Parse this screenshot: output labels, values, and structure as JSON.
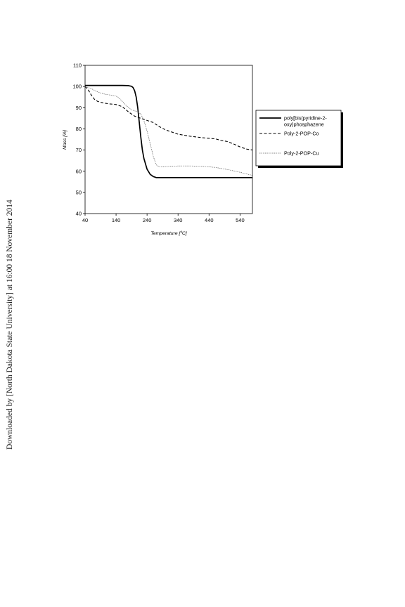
{
  "side_note": "Downloaded by [North Dakota State University] at 16:00 18 November 2014",
  "chart_data": {
    "type": "line",
    "xlabel": "Temperature [ºC]",
    "ylabel": "Mass [%]",
    "xlim": [
      40,
      580
    ],
    "ylim": [
      40,
      110
    ],
    "x_ticks": [
      40,
      140,
      240,
      340,
      440,
      540
    ],
    "y_ticks": [
      40,
      50,
      60,
      70,
      80,
      90,
      100,
      110
    ],
    "grid": false,
    "legend_position": "right",
    "series": [
      {
        "name": "poly[bis(pyridine-2-oxy)phosphazene",
        "legend_lines": [
          "poly[bis(pyridine-2-",
          "oxy)phosphazene"
        ],
        "style": "solid-bold",
        "color": "#000000",
        "x": [
          40,
          100,
          160,
          180,
          190,
          195,
          200,
          205,
          210,
          215,
          220,
          225,
          230,
          240,
          250,
          260,
          270,
          280,
          300,
          400,
          500,
          580
        ],
        "y": [
          100.5,
          100.5,
          100.5,
          100.4,
          100.1,
          99.5,
          98,
          95,
          90,
          83,
          76,
          70,
          66,
          61,
          58.5,
          57.5,
          57,
          57,
          57,
          57,
          57,
          57
        ]
      },
      {
        "name": "Poly-2-POP-Co",
        "style": "dashed",
        "color": "#000000",
        "x": [
          40,
          50,
          60,
          70,
          80,
          100,
          120,
          140,
          160,
          180,
          200,
          220,
          240,
          260,
          280,
          300,
          340,
          380,
          420,
          460,
          480,
          500,
          520,
          540,
          560,
          580
        ],
        "y": [
          100,
          98.5,
          96,
          94,
          93,
          92.2,
          91.8,
          91.5,
          90.5,
          88,
          86,
          85,
          84,
          83,
          81,
          79.5,
          77.5,
          76.5,
          75.8,
          75.3,
          74.5,
          74,
          72.8,
          71.5,
          70.5,
          70
        ]
      },
      {
        "name": "Poly-2-POP-Cu",
        "style": "dotted",
        "color": "#000000",
        "x": [
          40,
          60,
          80,
          100,
          120,
          140,
          150,
          160,
          170,
          180,
          190,
          200,
          210,
          220,
          230,
          240,
          250,
          260,
          270,
          280,
          290,
          300,
          340,
          380,
          420,
          460,
          500,
          540,
          580
        ],
        "y": [
          100,
          99,
          97.5,
          96.5,
          96,
          95.5,
          94.5,
          93,
          91.5,
          90,
          89,
          88.5,
          88,
          87,
          84,
          79,
          73,
          67,
          63,
          62,
          62,
          62.2,
          62.5,
          62.5,
          62.3,
          61.8,
          60.8,
          59.5,
          58
        ]
      }
    ]
  }
}
